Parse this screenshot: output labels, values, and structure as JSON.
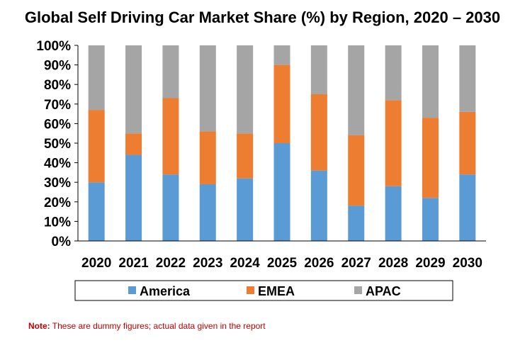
{
  "chart_data": {
    "type": "bar",
    "stacked": true,
    "title": "Global Self Driving Car Market Share (%) by Region, 2020 – 2030",
    "categories": [
      "2020",
      "2021",
      "2022",
      "2023",
      "2024",
      "2025",
      "2026",
      "2027",
      "2028",
      "2029",
      "2030"
    ],
    "series": [
      {
        "name": "America",
        "color": "#5b9bd5",
        "values": [
          30,
          44,
          34,
          29,
          32,
          50,
          36,
          18,
          28,
          22,
          34
        ]
      },
      {
        "name": "EMEA",
        "color": "#ed7d31",
        "values": [
          37,
          11,
          39,
          27,
          23,
          40,
          39,
          36,
          44,
          41,
          32
        ]
      },
      {
        "name": "APAC",
        "color": "#a5a5a5",
        "values": [
          33,
          45,
          27,
          44,
          45,
          10,
          25,
          46,
          28,
          37,
          34
        ]
      }
    ],
    "y_ticks": [
      "0%",
      "10%",
      "20%",
      "30%",
      "40%",
      "50%",
      "60%",
      "70%",
      "80%",
      "90%",
      "100%"
    ],
    "ylim": [
      0,
      100
    ],
    "xlabel": "",
    "ylabel": "",
    "legend": "bottom"
  },
  "note": {
    "label": "Note:",
    "text": " These are dummy figures; actual data given in the report"
  }
}
